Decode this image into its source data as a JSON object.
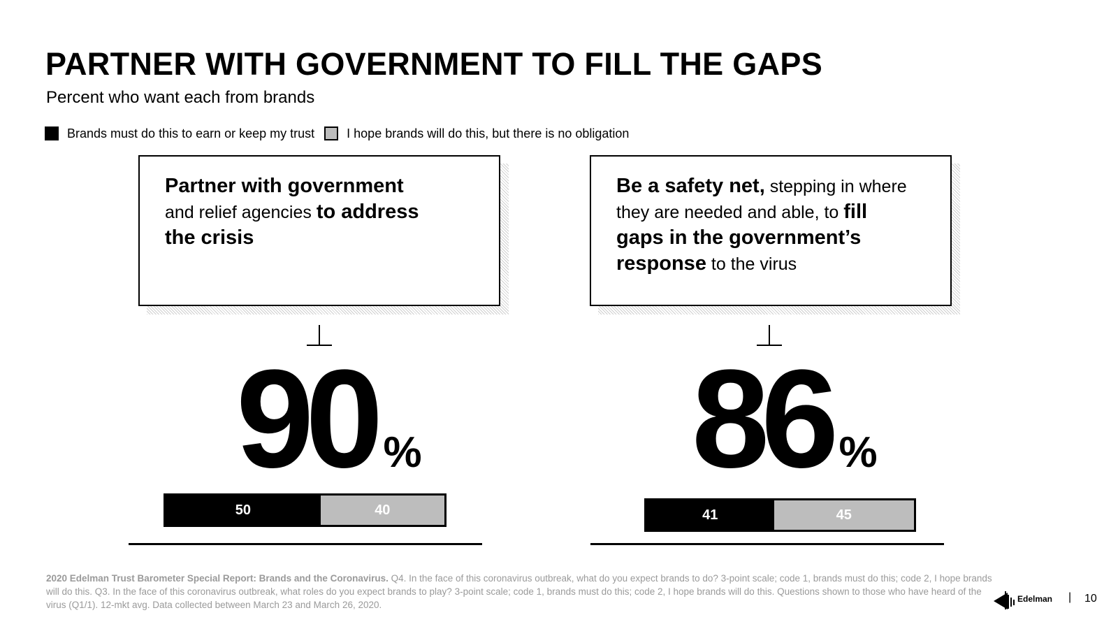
{
  "header": {
    "title": "PARTNER WITH GOVERNMENT TO FILL THE GAPS",
    "subtitle": "Percent who want each from brands"
  },
  "legend": [
    {
      "label": "Brands must do this to earn or keep my trust",
      "color": "#000000"
    },
    {
      "label": "I hope brands will do this, but there is no obligation",
      "color": "#bdbdbd"
    }
  ],
  "cards": [
    {
      "parts": [
        {
          "text": "Partner with government",
          "bold": true,
          "br": true
        },
        {
          "text": "and relief agencies ",
          "bold": false
        },
        {
          "text": "to address",
          "bold": true,
          "br": true
        },
        {
          "text": "the crisis",
          "bold": true
        }
      ]
    },
    {
      "parts": [
        {
          "text": "Be a safety net,",
          "bold": true
        },
        {
          "text": " stepping in where",
          "bold": false,
          "br": true
        },
        {
          "text": "they are needed and able, to ",
          "bold": false
        },
        {
          "text": "fill",
          "bold": true,
          "br": true
        },
        {
          "text": "gaps in the government’s",
          "bold": true,
          "br": true
        },
        {
          "text": "response",
          "bold": true
        },
        {
          "text": " to the virus",
          "bold": false
        }
      ]
    }
  ],
  "chart_data": {
    "type": "bar",
    "orientation": "horizontal-stacked",
    "categories": [
      "Partner with government and relief agencies to address the crisis",
      "Be a safety net, stepping in where they are needed and able, to fill gaps in the government’s response to the virus"
    ],
    "totals": [
      "90",
      "86"
    ],
    "total_suffix": "%",
    "series": [
      {
        "name": "Brands must do this to earn or keep my trust",
        "values": [
          50,
          41
        ],
        "color": "#000000",
        "label_color": "#ffffff"
      },
      {
        "name": "I hope brands will do this, but there is no obligation",
        "values": [
          40,
          45
        ],
        "color": "#bdbdbd",
        "label_color": "#ffffff"
      }
    ],
    "xlim": [
      0,
      100
    ],
    "grid": false,
    "legend_position": "top-left"
  },
  "footnote": {
    "source": "2020 Edelman Trust Barometer Special Report: Brands and the Coronavirus.",
    "text": " Q4. In the face of this coronavirus outbreak, what do you expect brands to do? 3-point scale; code 1, brands must do this; code 2, I hope brands will do this. Q3. In the face of this coronavirus outbreak, what roles do you expect brands to play? 3-point scale; code 1, brands must do this; code 2, I hope brands will do this. Questions shown to those who have heard of the virus (Q1/1). 12-mkt avg. Data collected between March 23 and March 26, 2020."
  },
  "brand": {
    "name": "Edelman",
    "logo_icon": "edelman-logo-icon",
    "separator": "|",
    "page_number": "10"
  }
}
